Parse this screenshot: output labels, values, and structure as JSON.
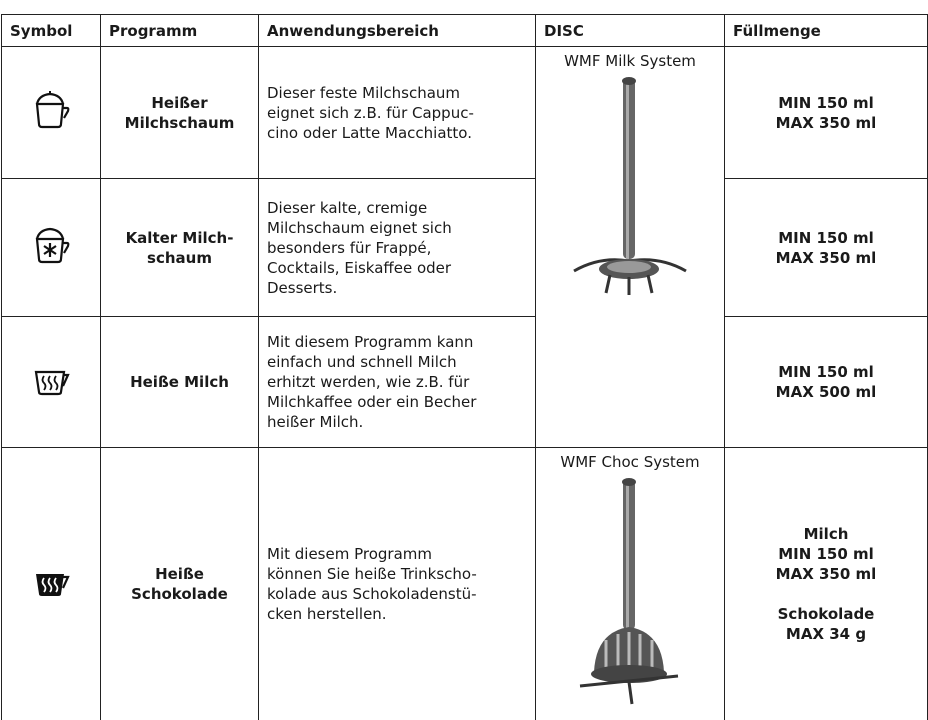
{
  "table": {
    "headers": [
      "Symbol",
      "Programm",
      "Anwendungsbereich",
      "DISC",
      "Füllmenge"
    ],
    "rows": [
      {
        "programm": [
          "Heißer",
          "Milchschaum"
        ],
        "anwendung": [
          "Dieser feste Milchschaum",
          "eignet sich z.B. für Cappuc-",
          "cino oder Latte Macchiatto."
        ],
        "fuellmenge": [
          [
            "MIN 150 ml",
            "MAX 350 ml"
          ]
        ]
      },
      {
        "programm": [
          "Kalter Milch-",
          "schaum"
        ],
        "anwendung": [
          "Dieser kalte, cremige",
          "Milchschaum eignet sich",
          "besonders für Frappé,",
          "Cocktails, Eiskaffee oder",
          "Desserts."
        ],
        "fuellmenge": [
          [
            "MIN 150 ml",
            "MAX 350 ml"
          ]
        ]
      },
      {
        "programm": [
          "Heiße Milch"
        ],
        "anwendung": [
          "Mit diesem Programm kann",
          "einfach und schnell Milch",
          "erhitzt werden, wie z.B. für",
          "Milchkaffee oder ein Becher",
          "heißer Milch."
        ],
        "fuellmenge": [
          [
            "MIN 150 ml",
            "MAX 500 ml"
          ]
        ]
      },
      {
        "programm": [
          "Heiße",
          "Schokolade"
        ],
        "anwendung": [
          "Mit diesem Programm",
          "können Sie heiße Trinkscho-",
          "kolade aus Schokoladenstü-",
          "cken herstellen."
        ],
        "fuellmenge": [
          [
            "Milch",
            "MIN 150 ml",
            "MAX 350 ml"
          ],
          [
            "Schokolade",
            "MAX 34 g"
          ]
        ]
      }
    ],
    "discs": [
      "WMF Milk System",
      "WMF Choc System"
    ]
  }
}
